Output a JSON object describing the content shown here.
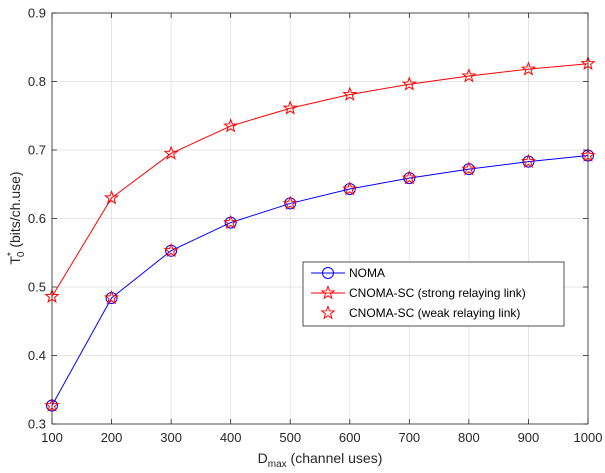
{
  "chart_data": {
    "type": "line",
    "x": [
      100,
      200,
      300,
      400,
      500,
      600,
      700,
      800,
      900,
      1000
    ],
    "xlim": [
      100,
      1000
    ],
    "ylim": [
      0.3,
      0.9
    ],
    "xticks": [
      100,
      200,
      300,
      400,
      500,
      600,
      700,
      800,
      900,
      1000
    ],
    "yticks": [
      0.3,
      0.4,
      0.5,
      0.6,
      0.7,
      0.8,
      0.9
    ],
    "xlabel": {
      "main": "D",
      "sub": "max",
      "rest": " (channel uses)"
    },
    "ylabel": {
      "main": "T",
      "sub": "0",
      "sup": "*",
      "rest": " (bits/ch.use)"
    },
    "grid": true,
    "legend_position": "center-right",
    "series": [
      {
        "name": "NOMA",
        "color": "#0000ff",
        "marker": "circle",
        "line": true,
        "values": [
          0.327,
          0.484,
          0.553,
          0.594,
          0.622,
          0.643,
          0.659,
          0.672,
          0.683,
          0.692
        ]
      },
      {
        "name": "CNOMA-SC (strong relaying link)",
        "color": "#ff0000",
        "marker": "star",
        "line": true,
        "values": [
          0.486,
          0.63,
          0.695,
          0.735,
          0.761,
          0.781,
          0.796,
          0.808,
          0.818,
          0.826
        ]
      },
      {
        "name": "CNOMA-SC (weak relaying link)",
        "color": "#ff0000",
        "marker": "star",
        "line": false,
        "values": [
          0.327,
          0.484,
          0.553,
          0.594,
          0.622,
          0.643,
          0.659,
          0.672,
          0.683,
          0.692
        ]
      }
    ]
  }
}
